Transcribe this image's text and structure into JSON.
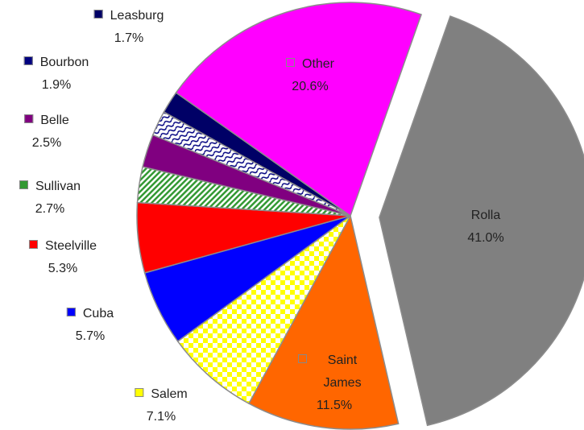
{
  "chart_data": {
    "type": "pie",
    "categories": [
      "Rolla",
      "Saint James",
      "Salem",
      "Cuba",
      "Steelville",
      "Sullivan",
      "Belle",
      "Bourbon",
      "Leasburg",
      "Other"
    ],
    "values": [
      41.0,
      11.5,
      7.1,
      5.7,
      5.3,
      2.7,
      2.5,
      1.9,
      1.7,
      20.6
    ],
    "value_labels": [
      "41.0%",
      "11.5%",
      "7.1%",
      "5.7%",
      "5.3%",
      "2.7%",
      "2.5%",
      "1.9%",
      "1.7%",
      "20.6%"
    ],
    "colors": [
      "#808080",
      "#ff6600",
      "#ffff00",
      "#0000ff",
      "#ff0000",
      "#339933",
      "#800080",
      "#000080",
      "#000066",
      "#ff00ff"
    ]
  }
}
